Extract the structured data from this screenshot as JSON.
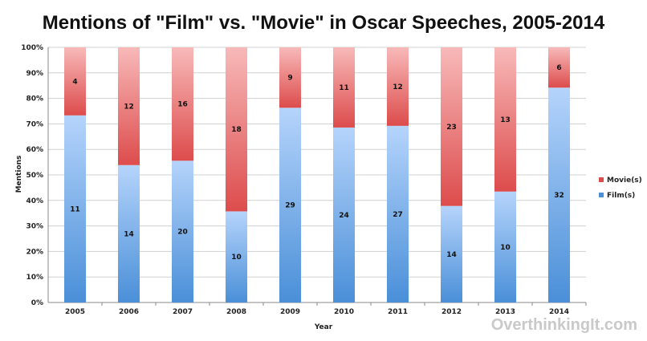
{
  "watermark": "OverthinkingIt.com",
  "colors": {
    "film_dark": "#4a8fd8",
    "film_light": "#b5d4fb",
    "movie_dark": "#dd4c4c",
    "movie_light": "#f8b9b9"
  },
  "chart_data": {
    "type": "bar",
    "stacked": "percent",
    "title": "Mentions of \"Film\" vs. \"Movie\" in Oscar Speeches, 2005-2014",
    "xlabel": "Year",
    "ylabel": "Mentions",
    "ylim": [
      0,
      100
    ],
    "yticks": [
      "0%",
      "10%",
      "20%",
      "30%",
      "40%",
      "50%",
      "60%",
      "70%",
      "80%",
      "90%",
      "100%"
    ],
    "grid": true,
    "legend_position": "right",
    "categories": [
      "2005",
      "2006",
      "2007",
      "2008",
      "2009",
      "2010",
      "2011",
      "2012",
      "2013",
      "2014"
    ],
    "series": [
      {
        "name": "Film(s)",
        "values": [
          11,
          14,
          20,
          10,
          29,
          24,
          27,
          14,
          10,
          32
        ]
      },
      {
        "name": "Movie(s)",
        "values": [
          4,
          12,
          16,
          18,
          9,
          11,
          12,
          23,
          13,
          6
        ]
      }
    ]
  }
}
